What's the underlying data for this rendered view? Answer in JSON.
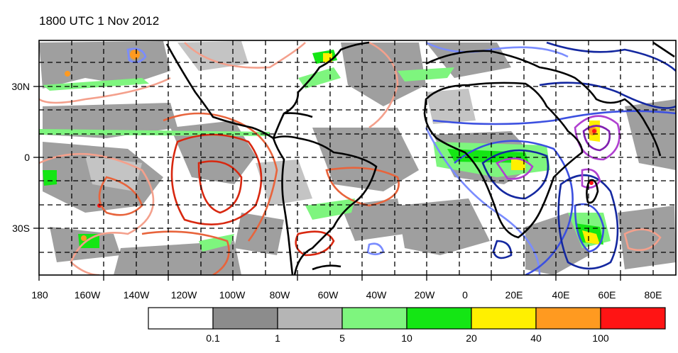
{
  "title": "1800 UTC 1 Nov 2012",
  "lat_labels": [
    "30N",
    "0",
    "30S"
  ],
  "lon_labels": [
    "180",
    "160W",
    "140W",
    "120W",
    "100W",
    "80W",
    "60W",
    "40W",
    "20W",
    "0",
    "20E",
    "40E",
    "60E",
    "80E"
  ],
  "colorbar": {
    "colors": [
      "#ffffff",
      "#8c8c8c",
      "#b5b5b5",
      "#7ef57e",
      "#14e614",
      "#fff000",
      "#ff9a20",
      "#ff1414"
    ],
    "labels": [
      "0.1",
      "1",
      "5",
      "10",
      "20",
      "40",
      "100"
    ]
  },
  "contour_colors": {
    "warm": [
      "#f4a08c",
      "#e8643c",
      "#d82810"
    ],
    "cool": [
      "#7a8cff",
      "#3c50e0",
      "#1428a0"
    ],
    "purple": [
      "#b040d0",
      "#8020b0"
    ]
  }
}
